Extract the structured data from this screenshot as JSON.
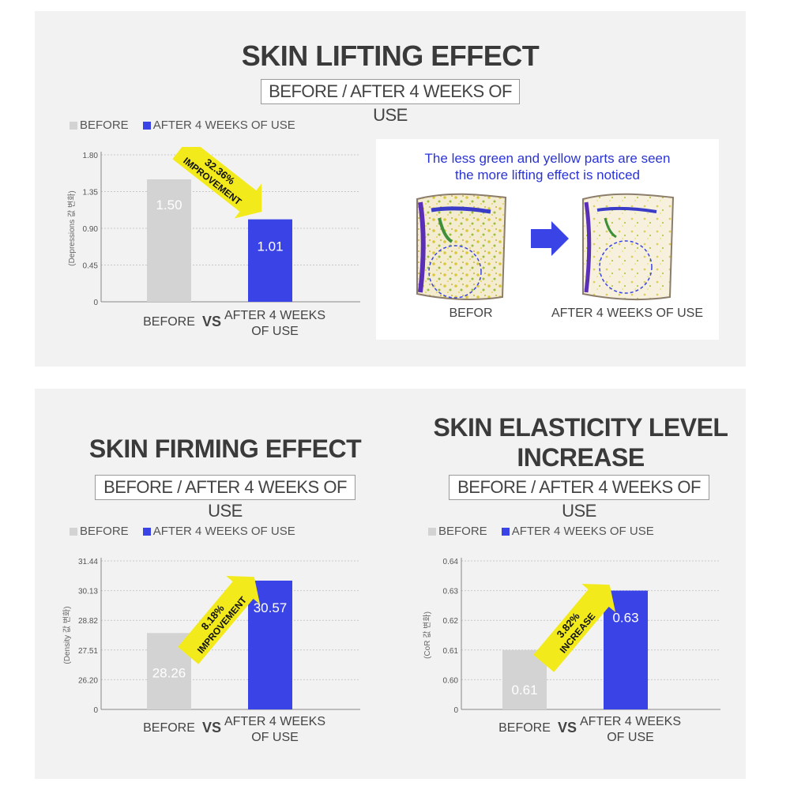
{
  "legend": {
    "before": "BEFORE",
    "after": "AFTER 4 WEEKS OF USE"
  },
  "colors": {
    "before": "#d3d3d3",
    "after": "#3a44e6",
    "arrow": "#f2ea1b",
    "caption": "#2a33d6"
  },
  "lifting": {
    "title": "SKIN LIFTING EFFECT",
    "subtitle": "BEFORE / AFTER 4 WEEKS OF USE",
    "photos": {
      "caption_line1": "The less green and yellow parts are seen",
      "caption_line2": "the more lifting effect is noticed",
      "before_label": "BEFOR",
      "after_label": "AFTER 4 WEEKS OF USE"
    }
  },
  "firming": {
    "title": "SKIN FIRMING EFFECT",
    "subtitle": "BEFORE / AFTER 4 WEEKS OF USE"
  },
  "elasticity": {
    "title_line1": "SKIN ELASTICITY LEVEL",
    "title_line2": "INCREASE",
    "subtitle": "BEFORE / AFTER 4 WEEKS OF USE"
  },
  "chart_data": [
    {
      "type": "bar",
      "id": "lifting",
      "title": "SKIN LIFTING EFFECT",
      "ylabel": "(Depressions 값 변화)",
      "categories": [
        "BEFORE",
        "AFTER 4 WEEKS OF USE"
      ],
      "cat_label_before": "BEFORE",
      "vs": "VS",
      "cat_label_after_line1": "AFTER 4 WEEKS",
      "cat_label_after_line2": "OF USE",
      "values": [
        1.5,
        1.01
      ],
      "value_labels": [
        "1.50",
        "1.01"
      ],
      "yticks": [
        "0",
        "0.45",
        "0.90",
        "1.35",
        "1.80"
      ],
      "ylim": [
        0,
        1.8
      ],
      "badge_line1": "32.36%",
      "badge_line2": "IMPROVEMENT",
      "arrow_dir": "down"
    },
    {
      "type": "bar",
      "id": "firming",
      "title": "SKIN FIRMING EFFECT",
      "ylabel": "(Density 값 변화)",
      "categories": [
        "BEFORE",
        "AFTER 4 WEEKS OF USE"
      ],
      "cat_label_before": "BEFORE",
      "vs": "VS",
      "cat_label_after_line1": "AFTER 4 WEEKS",
      "cat_label_after_line2": "OF USE",
      "values": [
        28.26,
        30.57
      ],
      "value_labels": [
        "28.26",
        "30.57"
      ],
      "yticks": [
        "0",
        "26.20",
        "27.51",
        "28.82",
        "30.13",
        "31.44"
      ],
      "ylim": [
        24.89,
        31.44
      ],
      "axis_break": true,
      "badge_line1": "8.18%",
      "badge_line2": "IMPROVEMENT",
      "arrow_dir": "up"
    },
    {
      "type": "bar",
      "id": "elasticity",
      "title": "SKIN ELASTICITY LEVEL INCREASE",
      "ylabel": "(CoR 값 변화)",
      "categories": [
        "BEFORE",
        "AFTER 4 WEEKS OF USE"
      ],
      "cat_label_before": "BEFORE",
      "vs": "VS",
      "cat_label_after_line1": "AFTER 4 WEEKS",
      "cat_label_after_line2": "OF USE",
      "values": [
        0.61,
        0.63
      ],
      "value_labels": [
        "0.61",
        "0.63"
      ],
      "yticks": [
        "0",
        "0.60",
        "0.61",
        "0.62",
        "0.63",
        "0.64"
      ],
      "ylim": [
        0.59,
        0.64
      ],
      "axis_break": true,
      "badge_line1": "3.82%",
      "badge_line2": "INCREASE",
      "arrow_dir": "up"
    }
  ]
}
